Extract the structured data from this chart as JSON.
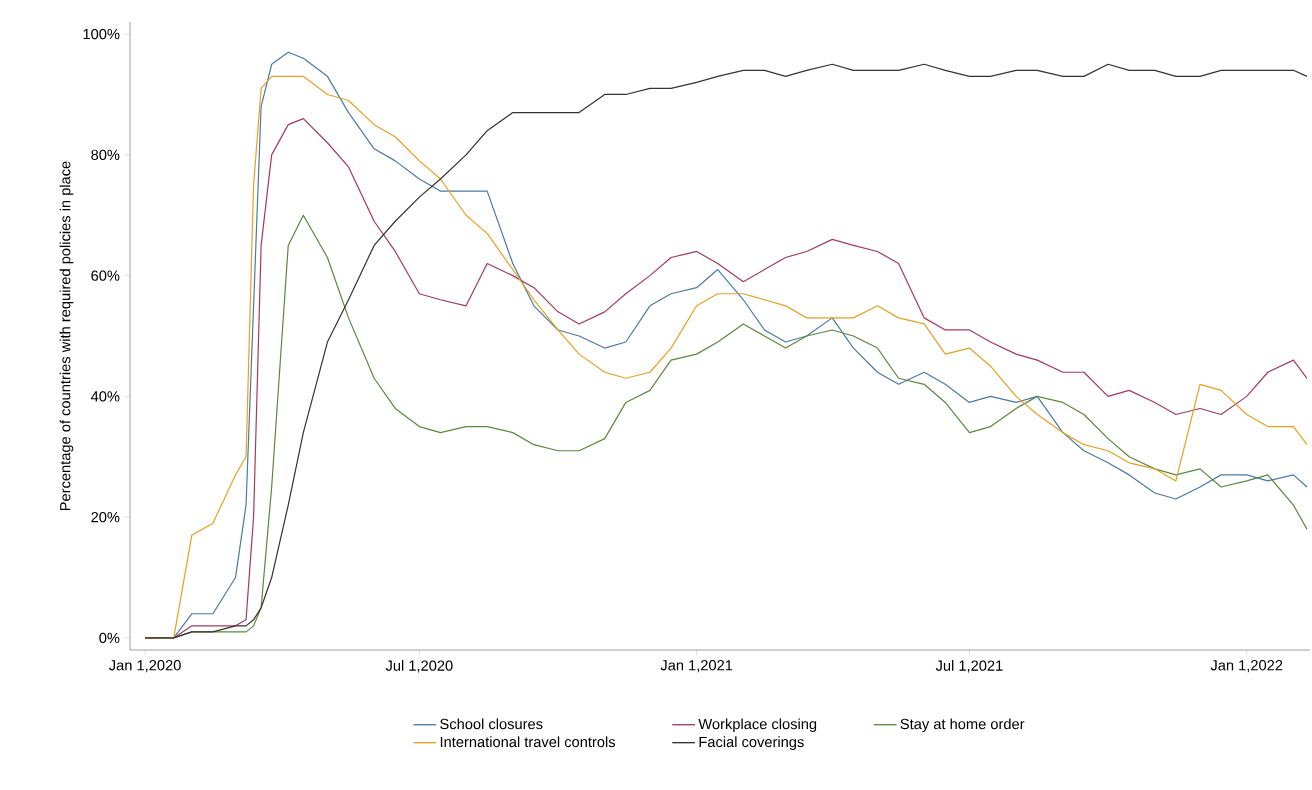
{
  "chart_data": {
    "type": "line",
    "ylabel": "Percentage of countries with required policies in place",
    "x": [
      "2020-01-01",
      "2020-01-20",
      "2020-02-01",
      "2020-02-15",
      "2020-03-01",
      "2020-03-08",
      "2020-03-13",
      "2020-03-18",
      "2020-03-25",
      "2020-04-05",
      "2020-04-15",
      "2020-05-01",
      "2020-05-15",
      "2020-06-01",
      "2020-06-15",
      "2020-07-01",
      "2020-07-15",
      "2020-08-01",
      "2020-08-15",
      "2020-09-01",
      "2020-09-15",
      "2020-10-01",
      "2020-10-15",
      "2020-11-01",
      "2020-11-15",
      "2020-12-01",
      "2020-12-15",
      "2021-01-01",
      "2021-01-15",
      "2021-02-01",
      "2021-02-15",
      "2021-03-01",
      "2021-03-15",
      "2021-04-01",
      "2021-04-15",
      "2021-05-01",
      "2021-05-15",
      "2021-06-01",
      "2021-06-15",
      "2021-07-01",
      "2021-07-15",
      "2021-08-01",
      "2021-08-15",
      "2021-09-01",
      "2021-09-15",
      "2021-10-01",
      "2021-10-15",
      "2021-11-01",
      "2021-11-15",
      "2021-12-01",
      "2021-12-15",
      "2022-01-01",
      "2022-01-15",
      "2022-02-01",
      "2022-02-10"
    ],
    "series": [
      {
        "name": "School closures",
        "color": "#4a7aa8",
        "values": [
          0,
          0,
          4,
          4,
          10,
          22,
          55,
          88,
          95,
          97,
          96,
          93,
          87,
          81,
          79,
          76,
          74,
          74,
          74,
          62,
          55,
          51,
          50,
          48,
          49,
          55,
          57,
          58,
          61,
          56,
          51,
          49,
          50,
          53,
          48,
          44,
          42,
          44,
          42,
          39,
          40,
          39,
          40,
          34,
          31,
          29,
          27,
          24,
          23,
          25,
          27,
          27,
          26,
          27,
          25
        ]
      },
      {
        "name": "Workplace closing",
        "color": "#a8385e",
        "values": [
          0,
          0,
          2,
          2,
          2,
          3,
          20,
          65,
          80,
          85,
          86,
          82,
          78,
          69,
          64,
          57,
          56,
          55,
          62,
          60,
          58,
          54,
          52,
          54,
          57,
          60,
          63,
          64,
          62,
          59,
          61,
          63,
          64,
          66,
          65,
          64,
          62,
          53,
          51,
          51,
          49,
          47,
          46,
          44,
          44,
          40,
          41,
          39,
          37,
          38,
          37,
          40,
          44,
          46,
          43
        ]
      },
      {
        "name": "Stay at home order",
        "color": "#5a8a3a",
        "values": [
          0,
          0,
          1,
          1,
          1,
          1,
          2,
          5,
          25,
          65,
          70,
          63,
          53,
          43,
          38,
          35,
          34,
          35,
          35,
          34,
          32,
          31,
          31,
          33,
          39,
          41,
          46,
          47,
          49,
          52,
          50,
          48,
          50,
          51,
          50,
          48,
          43,
          42,
          39,
          34,
          35,
          38,
          40,
          39,
          37,
          33,
          30,
          28,
          27,
          28,
          25,
          26,
          27,
          22,
          18
        ]
      },
      {
        "name": "International travel controls",
        "color": "#e8a020",
        "values": [
          0,
          0,
          17,
          19,
          27,
          30,
          75,
          91,
          93,
          93,
          93,
          90,
          89,
          85,
          83,
          79,
          76,
          70,
          67,
          61,
          56,
          51,
          47,
          44,
          43,
          44,
          48,
          55,
          57,
          57,
          56,
          55,
          53,
          53,
          53,
          55,
          53,
          52,
          47,
          48,
          45,
          40,
          37,
          34,
          32,
          31,
          29,
          28,
          26,
          42,
          41,
          37,
          35,
          35,
          32
        ]
      },
      {
        "name": "Facial coverings",
        "color": "#333333",
        "values": [
          0,
          0,
          1,
          1,
          2,
          2,
          3,
          5,
          10,
          22,
          34,
          49,
          56,
          65,
          69,
          73,
          76,
          80,
          84,
          87,
          87,
          87,
          87,
          90,
          90,
          91,
          91,
          92,
          93,
          94,
          94,
          93,
          94,
          95,
          94,
          94,
          94,
          95,
          94,
          93,
          93,
          94,
          94,
          93,
          93,
          95,
          94,
          94,
          93,
          93,
          94,
          94,
          94,
          94,
          93
        ]
      }
    ],
    "xlim": [
      "2019-12-22",
      "2022-02-12"
    ],
    "xticks": [
      {
        "value": "2020-01-01",
        "label": "Jan 1,2020"
      },
      {
        "value": "2020-07-01",
        "label": "Jul 1,2020"
      },
      {
        "value": "2021-01-01",
        "label": "Jan 1,2021"
      },
      {
        "value": "2021-07-01",
        "label": "Jul 1,2021"
      },
      {
        "value": "2022-01-01",
        "label": "Jan 1,2022"
      }
    ],
    "ylim": [
      -2,
      102
    ],
    "yticks": [
      {
        "value": 0,
        "label": "0%"
      },
      {
        "value": 20,
        "label": "20%"
      },
      {
        "value": 40,
        "label": "40%"
      },
      {
        "value": 60,
        "label": "60%"
      },
      {
        "value": 80,
        "label": "80%"
      },
      {
        "value": 100,
        "label": "100%"
      }
    ],
    "legend": "bottom"
  }
}
